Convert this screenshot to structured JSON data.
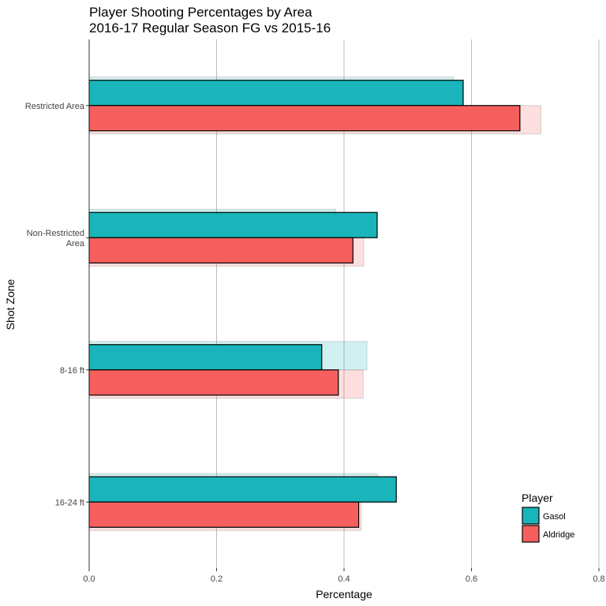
{
  "chart_data": {
    "type": "bar",
    "orientation": "horizontal",
    "title": "Player Shooting Percentages by Area",
    "subtitle": "2016-17 Regular Season FG vs 2015-16",
    "xlabel": "Percentage",
    "ylabel": "Shot Zone",
    "xlim": [
      0,
      0.8
    ],
    "x_ticks": [
      0.0,
      0.2,
      0.4,
      0.6,
      0.8
    ],
    "x_tick_labels": [
      "0.0",
      "0.2",
      "0.4",
      "0.6",
      "0.8"
    ],
    "categories": [
      "Restricted Area",
      "Non-Restricted Area",
      "8-16 ft",
      "16-24 ft"
    ],
    "category_labels": [
      [
        "Restricted Area"
      ],
      [
        "Non-Restricted",
        "Area"
      ],
      [
        "8-16 ft"
      ],
      [
        "16-24 ft"
      ]
    ],
    "grid": "vertical major",
    "legend": {
      "title": "Player",
      "placement": "bottom-right",
      "entries": [
        "Gasol",
        "Aldridge"
      ]
    },
    "series": [
      {
        "name": "Gasol",
        "color": "#19B5BA",
        "values_2016_17": [
          0.587,
          0.452,
          0.365,
          0.482
        ],
        "values_2015_16": [
          0.572,
          0.387,
          0.436,
          0.453
        ]
      },
      {
        "name": "Aldridge",
        "color": "#F5605E",
        "values_2016_17": [
          0.676,
          0.414,
          0.391,
          0.423
        ],
        "values_2015_16": [
          0.709,
          0.431,
          0.43,
          0.427
        ]
      }
    ]
  }
}
